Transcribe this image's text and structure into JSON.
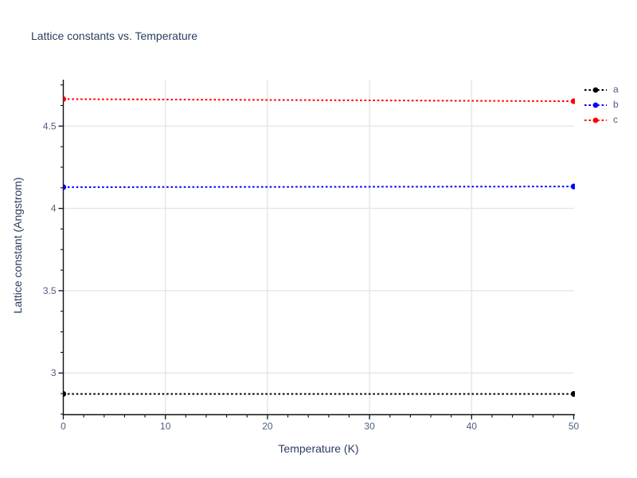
{
  "page": {
    "background": "#ffffff"
  },
  "chart_data": {
    "type": "line",
    "title": "Lattice constants vs. Temperature",
    "xlabel": "Temperature (K)",
    "ylabel": "Lattice constant (Angstrom)",
    "xlim": [
      0,
      50
    ],
    "ylim": [
      2.747,
      4.782
    ],
    "x_ticks": [
      0,
      10,
      20,
      30,
      40,
      50
    ],
    "y_ticks": [
      3,
      3.5,
      4,
      4.5
    ],
    "x_minor_step": 2,
    "y_minor_step": 0.125,
    "grid": true,
    "legend_position": "top-right",
    "series": [
      {
        "name": "a",
        "color": "#000000",
        "line_style": "dotted",
        "marker": "circle",
        "x": [
          0,
          50
        ],
        "y": [
          2.873,
          2.873
        ]
      },
      {
        "name": "b",
        "color": "#0000ff",
        "line_style": "dotted",
        "marker": "circle",
        "x": [
          0,
          50
        ],
        "y": [
          4.129,
          4.133
        ]
      },
      {
        "name": "c",
        "color": "#ff0000",
        "line_style": "dotted",
        "marker": "circle",
        "x": [
          0,
          50
        ],
        "y": [
          4.664,
          4.651
        ]
      }
    ]
  },
  "colors": {
    "title_text": "#2a3f5f",
    "axis_label_text": "#2a3f5f",
    "tick_text": "#4d5e80",
    "grid": "#e6e6e6",
    "axis_line": "#111111",
    "background": "#ffffff"
  }
}
